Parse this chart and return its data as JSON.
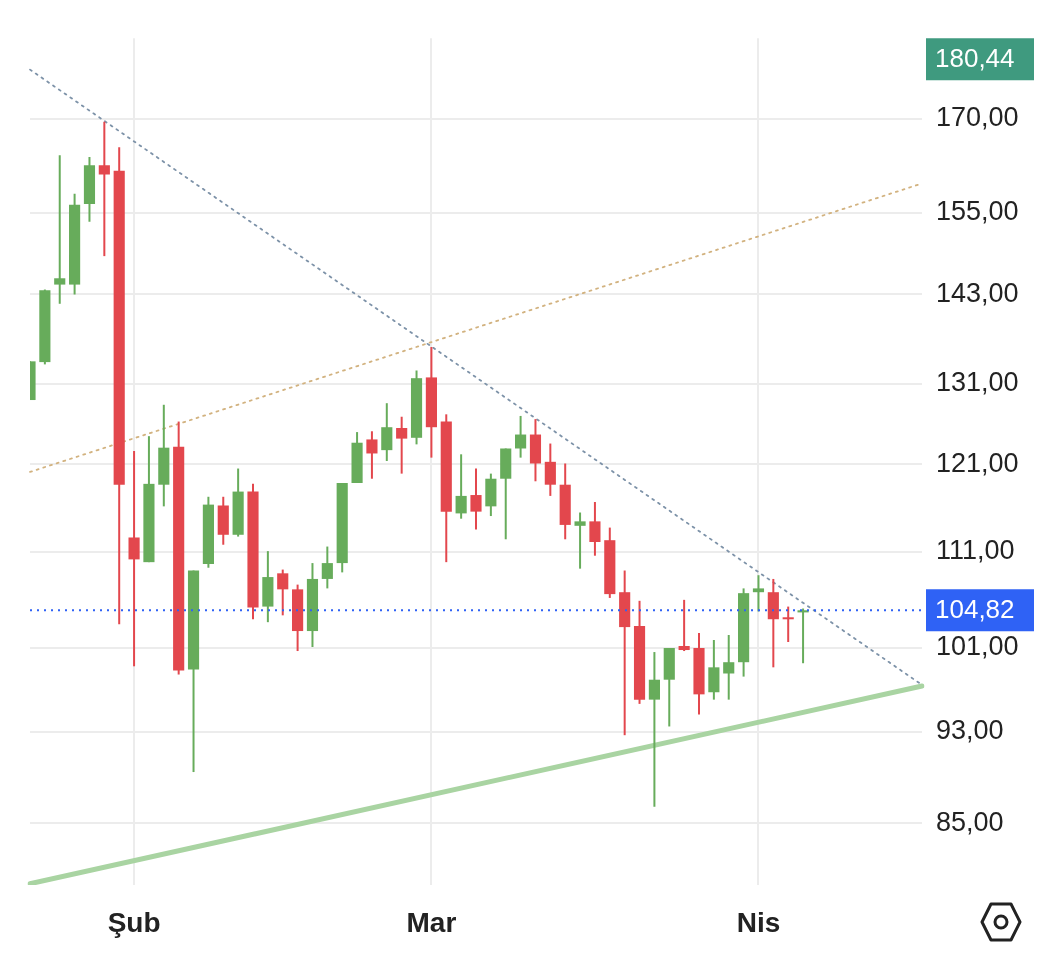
{
  "chart_data": {
    "type": "candlestick",
    "categories": [
      null,
      null,
      null,
      null,
      null,
      null,
      null,
      "Şub",
      null,
      null,
      null,
      null,
      null,
      null,
      null,
      null,
      null,
      null,
      null,
      null,
      null,
      null,
      null,
      null,
      null,
      null,
      null,
      "Mar",
      null,
      null,
      null,
      null,
      null,
      null,
      null,
      null,
      null,
      null,
      null,
      null,
      null,
      null,
      null,
      null,
      null,
      null,
      null,
      null,
      null,
      "Nis",
      null,
      null,
      null,
      null,
      null,
      null,
      null,
      null,
      null,
      null,
      null
    ],
    "ohlc": [
      [
        128.9,
        133.9,
        128.9,
        133.9
      ],
      [
        133.8,
        143.7,
        133.5,
        143.6
      ],
      [
        144.4,
        164.0,
        141.7,
        145.3
      ],
      [
        144.4,
        157.9,
        143.0,
        156.2
      ],
      [
        156.3,
        163.7,
        153.6,
        162.4
      ],
      [
        162.4,
        169.5,
        148.5,
        160.9
      ],
      [
        161.5,
        165.3,
        103.4,
        118.6
      ],
      [
        112.6,
        122.6,
        99.2,
        110.2
      ],
      [
        109.9,
        124.4,
        109.9,
        118.7
      ],
      [
        118.6,
        128.3,
        116.1,
        123.0
      ],
      [
        123.1,
        126.2,
        98.4,
        98.8
      ],
      [
        98.9,
        109.0,
        89.4,
        109.0
      ],
      [
        109.7,
        117.2,
        109.3,
        116.3
      ],
      [
        116.2,
        117.2,
        111.8,
        112.9
      ],
      [
        112.9,
        120.5,
        112.7,
        117.8
      ],
      [
        117.8,
        118.7,
        103.9,
        105.1
      ],
      [
        105.2,
        111.1,
        103.6,
        108.3
      ],
      [
        108.7,
        109.1,
        104.3,
        107.0
      ],
      [
        107.0,
        107.5,
        100.7,
        102.7
      ],
      [
        102.7,
        109.8,
        101.1,
        108.1
      ],
      [
        108.1,
        111.6,
        107.1,
        109.8
      ],
      [
        109.8,
        118.8,
        108.8,
        118.8
      ],
      [
        118.8,
        124.9,
        118.8,
        123.6
      ],
      [
        124.0,
        125.0,
        119.3,
        122.3
      ],
      [
        122.7,
        128.5,
        121.4,
        125.5
      ],
      [
        125.4,
        126.8,
        119.9,
        124.1
      ],
      [
        124.2,
        132.7,
        123.4,
        131.7
      ],
      [
        131.8,
        135.8,
        121.8,
        125.5
      ],
      [
        126.2,
        127.1,
        109.9,
        115.5
      ],
      [
        115.3,
        122.2,
        114.7,
        117.3
      ],
      [
        117.4,
        120.5,
        113.5,
        115.5
      ],
      [
        116.1,
        119.9,
        115.0,
        119.3
      ],
      [
        119.3,
        122.9,
        112.4,
        122.9
      ],
      [
        122.9,
        126.9,
        121.8,
        124.6
      ],
      [
        124.6,
        126.5,
        119.0,
        121.1
      ],
      [
        121.3,
        123.5,
        117.3,
        118.6
      ],
      [
        118.6,
        121.1,
        112.4,
        114.0
      ],
      [
        113.9,
        115.4,
        109.2,
        114.4
      ],
      [
        114.4,
        116.6,
        110.6,
        112.1
      ],
      [
        112.3,
        113.7,
        106.1,
        106.5
      ],
      [
        106.7,
        109.0,
        92.7,
        103.1
      ],
      [
        103.2,
        105.8,
        95.6,
        96.0
      ],
      [
        96.0,
        100.6,
        86.4,
        97.9
      ],
      [
        97.9,
        101.0,
        93.5,
        101.0
      ],
      [
        101.2,
        105.9,
        100.7,
        100.8
      ],
      [
        101.0,
        102.5,
        94.6,
        96.5
      ],
      [
        96.7,
        101.8,
        96.0,
        99.1
      ],
      [
        98.5,
        102.3,
        96.0,
        99.6
      ],
      [
        99.6,
        107.1,
        98.2,
        106.6
      ],
      [
        106.7,
        108.5,
        104.7,
        107.1
      ],
      [
        106.7,
        108.1,
        99.1,
        103.9
      ],
      [
        104.1,
        105.2,
        101.6,
        104.0
      ],
      [
        104.6,
        105.0,
        99.5,
        104.82
      ],
      null,
      null,
      null,
      null,
      null,
      null,
      null,
      null
    ],
    "colors": [
      "#67ac5b",
      "#67ac5b",
      "#67ac5b",
      "#67ac5b",
      "#67ac5b",
      "#e3474d",
      "#e3474d",
      "#e3474d",
      "#67ac5b",
      "#67ac5b",
      "#e3474d",
      "#67ac5b",
      "#67ac5b",
      "#e3474d",
      "#67ac5b",
      "#e3474d",
      "#67ac5b",
      "#e3474d",
      "#e3474d",
      "#67ac5b",
      "#67ac5b",
      "#67ac5b",
      "#67ac5b",
      "#e3474d",
      "#67ac5b",
      "#e3474d",
      "#67ac5b",
      "#e3474d",
      "#e3474d",
      "#67ac5b",
      "#e3474d",
      "#67ac5b",
      "#67ac5b",
      "#67ac5b",
      "#e3474d",
      "#e3474d",
      "#e3474d",
      "#67ac5b",
      "#e3474d",
      "#e3474d",
      "#e3474d",
      "#e3474d",
      "#67ac5b",
      "#67ac5b",
      "#e3474d",
      "#e3474d",
      "#67ac5b",
      "#67ac5b",
      "#67ac5b",
      "#67ac5b",
      "#e3474d",
      "#e3474d",
      "#67ac5b",
      null,
      null,
      null,
      null,
      null,
      null,
      null,
      null
    ],
    "series": [
      {
        "type": "line",
        "color": "#7d92a8",
        "line_style": "dotted",
        "values": [
          178.4,
          null,
          null,
          null,
          null,
          null,
          null,
          null,
          null,
          null,
          null,
          null,
          null,
          null,
          null,
          null,
          null,
          null,
          null,
          null,
          null,
          null,
          null,
          null,
          null,
          null,
          null,
          null,
          null,
          null,
          null,
          null,
          null,
          null,
          null,
          null,
          null,
          null,
          null,
          null,
          null,
          null,
          null,
          null,
          null,
          null,
          null,
          null,
          null,
          null,
          null,
          null,
          null,
          null,
          null,
          null,
          null,
          null,
          null,
          null,
          97.4
        ]
      },
      {
        "type": "line",
        "color": "#d2b27f",
        "line_style": "dotted",
        "values": [
          120.1,
          null,
          null,
          null,
          null,
          null,
          null,
          null,
          null,
          null,
          null,
          null,
          null,
          null,
          null,
          null,
          null,
          null,
          null,
          null,
          null,
          null,
          null,
          null,
          null,
          null,
          null,
          null,
          null,
          null,
          null,
          null,
          null,
          null,
          null,
          null,
          null,
          null,
          null,
          null,
          null,
          null,
          null,
          null,
          null,
          null,
          null,
          null,
          null,
          null,
          null,
          null,
          null,
          null,
          null,
          null,
          null,
          null,
          null,
          null,
          159.5
        ]
      },
      {
        "type": "line",
        "color": "#a9d4a2",
        "line_style": "solid",
        "values": [
          80.1,
          null,
          null,
          null,
          null,
          null,
          null,
          null,
          null,
          null,
          null,
          null,
          null,
          null,
          null,
          null,
          null,
          null,
          null,
          null,
          null,
          null,
          null,
          null,
          null,
          null,
          null,
          null,
          null,
          null,
          null,
          null,
          null,
          null,
          null,
          null,
          null,
          null,
          null,
          null,
          null,
          null,
          null,
          null,
          null,
          null,
          null,
          null,
          null,
          null,
          null,
          null,
          null,
          null,
          null,
          null,
          null,
          null,
          null,
          null,
          97.3
        ]
      }
    ],
    "ylim": [
      80,
      184
    ],
    "yticks": [
      {
        "value": 85,
        "label": "85,00"
      },
      {
        "value": 93,
        "label": "93,00"
      },
      {
        "value": 101,
        "label": "101,00"
      },
      {
        "value": 111,
        "label": "111,00"
      },
      {
        "value": 121,
        "label": "121,00"
      },
      {
        "value": 131,
        "label": "131,00"
      },
      {
        "value": 143,
        "label": "143,00"
      },
      {
        "value": 155,
        "label": "155,00"
      },
      {
        "value": 170,
        "label": "170,00"
      }
    ],
    "log": "y",
    "grid": true,
    "ref_lines": [
      {
        "axis": "y",
        "value": 104.82,
        "label": "104,82",
        "color": "#2f62f5",
        "line_style": "dotted"
      }
    ],
    "annotations": [
      "180,44"
    ]
  }
}
